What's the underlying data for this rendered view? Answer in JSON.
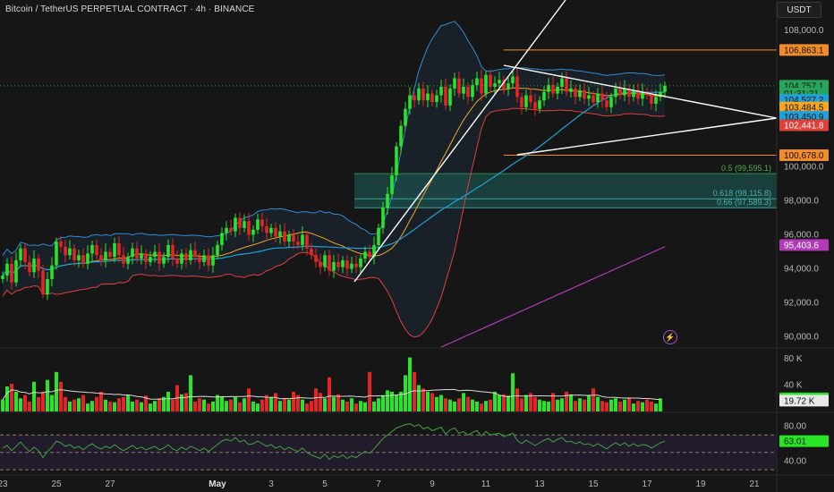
{
  "header": {
    "symbol_title": "Bitcoin / TetherUS PERPETUAL CONTRACT · 4h · BINANCE",
    "currency": "USDT"
  },
  "colors": {
    "background": "#161616",
    "up": "#26e626",
    "down": "#e62424",
    "bb_upper": "#2f8bd6",
    "bb_lower": "#e0403a",
    "ma_orange": "#f5a623",
    "ma_blue": "#1da1d8",
    "ma_purple": "#b03ab8",
    "trend": "#ffffff",
    "level": "#f28c28",
    "fib_fill": "#1f6f67"
  },
  "price_axis": {
    "ticks": [
      "108,000.0",
      "100,000.0",
      "98,000.0",
      "96,000.0",
      "94,000.0",
      "92,000.0",
      "90,000.0"
    ],
    "tick_values": [
      108000,
      100000,
      98000,
      96000,
      94000,
      92000,
      90000
    ],
    "labels": [
      {
        "text": "106,863.1",
        "value": 106863.1,
        "bg": "#f28c28",
        "fg": "#111111"
      },
      {
        "text": "104,757.1",
        "value": 104757.1,
        "bg": "#26a65b",
        "fg": "#111111"
      },
      {
        "text": "01:31:21",
        "value": 104300,
        "bg": "#26a65b",
        "fg": "#111111"
      },
      {
        "text": "104,527.2",
        "value": 103930,
        "bg": "#1da1d8",
        "fg": "#111111"
      },
      {
        "text": "103,484.5",
        "value": 103484.5,
        "bg": "#f5a623",
        "fg": "#111111"
      },
      {
        "text": "103,450.9",
        "value": 102930,
        "bg": "#1da1d8",
        "fg": "#111111"
      },
      {
        "text": "102,441.8",
        "value": 102441.8,
        "bg": "#e0403a",
        "fg": "#ffffff"
      },
      {
        "text": "100,678.0",
        "value": 100678,
        "bg": "#f28c28",
        "fg": "#111111"
      },
      {
        "text": "95,403.6",
        "value": 95403.6,
        "bg": "#b03ab8",
        "fg": "#ffffff"
      }
    ]
  },
  "fib_levels": [
    {
      "text": "0.5 (99,595.1)",
      "value": 99595.1
    },
    {
      "text": "0.618 (98,115.8)",
      "value": 98115.8
    },
    {
      "text": "0.66 (97,589.3)",
      "value": 97589.3
    }
  ],
  "levels": [
    106863.1,
    100678.0
  ],
  "volume_axis": {
    "ticks": [
      "80 K",
      "40 K"
    ],
    "tick_values": [
      80000,
      40000
    ],
    "labels": [
      {
        "text": "19.8K",
        "value": 19800,
        "bg": "#26e626",
        "fg": "#111111"
      },
      {
        "text": "19.72 K",
        "value": 16500,
        "bg": "#e8e8e8",
        "fg": "#111111"
      }
    ]
  },
  "rsi_axis": {
    "ticks": [
      "80.00",
      "40.00"
    ],
    "tick_values": [
      80,
      40
    ],
    "labels": [
      {
        "text": "63.01",
        "value": 63.01,
        "bg": "#26e626",
        "fg": "#111111"
      }
    ]
  },
  "time_axis": [
    {
      "label": "23",
      "index": 0
    },
    {
      "label": "25",
      "index": 12
    },
    {
      "label": "27",
      "index": 24
    },
    {
      "label": "May",
      "index": 48
    },
    {
      "label": "3",
      "index": 60
    },
    {
      "label": "5",
      "index": 72
    },
    {
      "label": "7",
      "index": 84
    },
    {
      "label": "9",
      "index": 96
    },
    {
      "label": "11",
      "index": 108
    },
    {
      "label": "13",
      "index": 120
    },
    {
      "label": "15",
      "index": 132
    },
    {
      "label": "17",
      "index": 144
    },
    {
      "label": "19",
      "index": 156
    },
    {
      "label": "21",
      "index": 168
    }
  ],
  "chart_data": {
    "type": "candlestick",
    "title": "Bitcoin / TetherUS PERPETUAL CONTRACT · 4h · BINANCE",
    "ylim": [
      89400,
      109800
    ],
    "y_scale": "linear",
    "volume_ylim": [
      0,
      95000
    ],
    "rsi_ylim": [
      25,
      95
    ],
    "candles_close": [
      93600,
      94300,
      93200,
      94500,
      95200,
      94400,
      93800,
      94600,
      93900,
      92500,
      93400,
      94200,
      95600,
      95300,
      94800,
      95200,
      94500,
      94800,
      94300,
      94900,
      95400,
      94800,
      94500,
      95000,
      94700,
      95500,
      94800,
      94300,
      94700,
      95200,
      94600,
      94900,
      94400,
      94700,
      95000,
      94300,
      94700,
      95400,
      94600,
      94300,
      94900,
      94500,
      95100,
      94700,
      94400,
      94800,
      94200,
      94800,
      95400,
      96100,
      96400,
      96200,
      97000,
      96400,
      96800,
      96000,
      96300,
      96900,
      96500,
      96100,
      96400,
      95900,
      96200,
      95600,
      96000,
      95600,
      95400,
      96000,
      95200,
      94800,
      94400,
      94100,
      94800,
      93900,
      94400,
      94100,
      94500,
      94000,
      94300,
      94100,
      94600,
      95000,
      94700,
      95400,
      96400,
      97600,
      98400,
      99500,
      101200,
      102400,
      103400,
      104200,
      103900,
      104600,
      103900,
      104300,
      103800,
      104200,
      104700,
      103600,
      104600,
      105200,
      104300,
      104700,
      104100,
      104800,
      105200,
      104300,
      105400,
      104700,
      104900,
      105100,
      104600,
      104900,
      105300,
      104100,
      103500,
      104200,
      103800,
      103400,
      103900,
      104400,
      104800,
      104300,
      104700,
      105200,
      104400,
      104600,
      104100,
      104500,
      104000,
      104200,
      103800,
      104300,
      103900,
      103500,
      104100,
      104600,
      104200,
      104600,
      104100,
      104500,
      104000,
      104400,
      104200,
      103700,
      104100,
      104400,
      104757.1
    ],
    "volume": [
      18000,
      38000,
      42000,
      30000,
      20000,
      25000,
      15000,
      45000,
      22000,
      30000,
      48000,
      25000,
      60000,
      45000,
      22000,
      15000,
      18000,
      20000,
      25000,
      12000,
      16000,
      22000,
      30000,
      18000,
      15000,
      14000,
      20000,
      22000,
      25000,
      15000,
      18000,
      14000,
      24000,
      12000,
      16000,
      20000,
      22000,
      30000,
      18000,
      40000,
      26000,
      28000,
      55000,
      15000,
      20000,
      18000,
      12000,
      15000,
      25000,
      22000,
      16000,
      18000,
      22000,
      14000,
      20000,
      35000,
      15000,
      12000,
      18000,
      25000,
      22000,
      28000,
      16000,
      20000,
      18000,
      30000,
      25000,
      18000,
      12000,
      16000,
      35000,
      28000,
      20000,
      52000,
      22000,
      26000,
      18000,
      15000,
      20000,
      12000,
      16000,
      14000,
      60000,
      15000,
      20000,
      25000,
      32000,
      30000,
      25000,
      30000,
      55000,
      82000,
      60000,
      40000,
      35000,
      30000,
      28000,
      22000,
      25000,
      20000,
      18000,
      15000,
      20000,
      28000,
      22000,
      18000,
      15000,
      12000,
      16000,
      18000,
      30000,
      25000,
      26000,
      24000,
      58000,
      35000,
      20000,
      25000,
      28000,
      22000,
      18000,
      16000,
      15000,
      28000,
      18000,
      20000,
      30000,
      26000,
      16000,
      20000,
      18000,
      25000,
      35000,
      22000,
      16000,
      14000,
      18000,
      20000,
      15000,
      18000,
      20000,
      12000,
      16000,
      14000,
      18000,
      15000,
      12000,
      19800
    ],
    "rsi": [
      55,
      58,
      52,
      57,
      62,
      56,
      51,
      56,
      52,
      44,
      51,
      56,
      63,
      61,
      57,
      59,
      55,
      57,
      53,
      57,
      60,
      56,
      54,
      57,
      55,
      59,
      55,
      52,
      55,
      58,
      54,
      56,
      53,
      55,
      57,
      53,
      55,
      59,
      54,
      52,
      56,
      53,
      57,
      55,
      52,
      55,
      51,
      55,
      59,
      63,
      65,
      63,
      67,
      62,
      64,
      59,
      60,
      63,
      60,
      57,
      59,
      55,
      57,
      53,
      56,
      53,
      51,
      55,
      50,
      47,
      45,
      43,
      48,
      42,
      46,
      44,
      47,
      43,
      46,
      44,
      48,
      51,
      49,
      54,
      60,
      66,
      70,
      74,
      78,
      80,
      82,
      83,
      80,
      82,
      77,
      79,
      75,
      77,
      79,
      71,
      76,
      78,
      72,
      74,
      70,
      73,
      75,
      69,
      74,
      70,
      71,
      72,
      68,
      70,
      72,
      64,
      60,
      64,
      61,
      58,
      61,
      64,
      66,
      62,
      65,
      67,
      62,
      63,
      60,
      62,
      59,
      60,
      57,
      60,
      57,
      54,
      58,
      61,
      58,
      61,
      57,
      60,
      57,
      59,
      58,
      55,
      58,
      61,
      63.01
    ],
    "candle_count": 149,
    "bollinger": "20,2",
    "overlays": [
      "MA fast (orange)",
      "MA slow (blue)",
      "MA long (purple)"
    ],
    "grid": false,
    "legend": "none"
  }
}
